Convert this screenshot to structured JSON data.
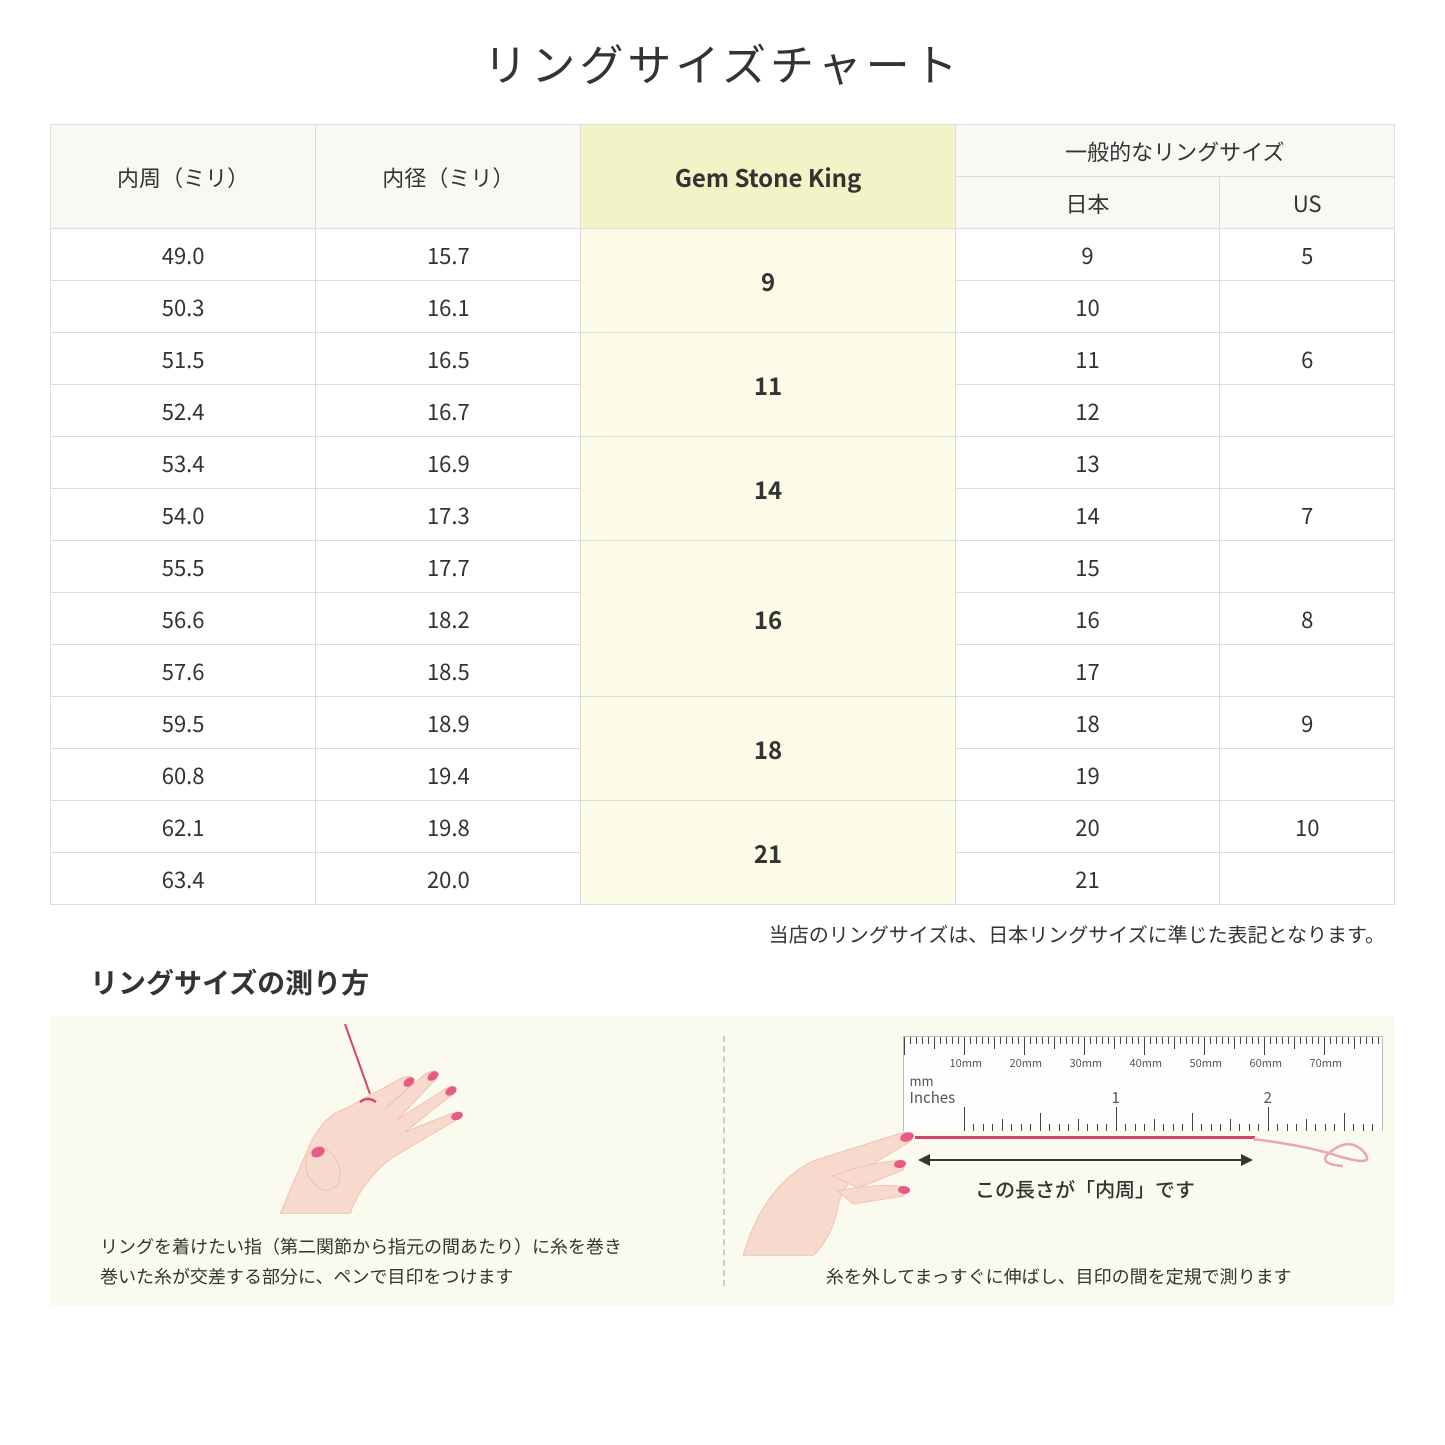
{
  "title": "リングサイズチャート",
  "headers": {
    "col1": "内周（ミリ）",
    "col2": "内径（ミリ）",
    "col3": "Gem Stone King",
    "group": "一般的なリングサイズ",
    "col4": "日本",
    "col5": "US"
  },
  "rows": [
    {
      "c": "49.0",
      "d": "15.7",
      "g": "9",
      "gspan": 2,
      "jp": "9",
      "us": "5"
    },
    {
      "c": "50.3",
      "d": "16.1",
      "jp": "10",
      "us": ""
    },
    {
      "c": "51.5",
      "d": "16.5",
      "g": "11",
      "gspan": 2,
      "jp": "11",
      "us": "6"
    },
    {
      "c": "52.4",
      "d": "16.7",
      "jp": "12",
      "us": ""
    },
    {
      "c": "53.4",
      "d": "16.9",
      "g": "14",
      "gspan": 2,
      "jp": "13",
      "us": ""
    },
    {
      "c": "54.0",
      "d": "17.3",
      "jp": "14",
      "us": "7"
    },
    {
      "c": "55.5",
      "d": "17.7",
      "g": "16",
      "gspan": 3,
      "jp": "15",
      "us": ""
    },
    {
      "c": "56.6",
      "d": "18.2",
      "jp": "16",
      "us": "8"
    },
    {
      "c": "57.6",
      "d": "18.5",
      "jp": "17",
      "us": ""
    },
    {
      "c": "59.5",
      "d": "18.9",
      "g": "18",
      "gspan": 2,
      "jp": "18",
      "us": "9"
    },
    {
      "c": "60.8",
      "d": "19.4",
      "jp": "19",
      "us": ""
    },
    {
      "c": "62.1",
      "d": "19.8",
      "g": "21",
      "gspan": 2,
      "jp": "20",
      "us": "10"
    },
    {
      "c": "63.4",
      "d": "20.0",
      "jp": "21",
      "us": ""
    }
  ],
  "note": "当店のリングサイズは、日本リングサイズに準じた表記となります。",
  "measure": {
    "title": "リングサイズの測り方",
    "left_caption": "リングを着けたい指（第二関節から指元の間あたり）に糸を巻き\n巻いた糸が交差する部分に、ペンで目印をつけます",
    "right_caption": "糸を外してまっすぐに伸ばし、目印の間を定規で測ります",
    "arrow_label": "この長さが「内周」です",
    "ruler_mm": "mm",
    "ruler_in": "Inches",
    "ruler_mm_marks": [
      "10mm",
      "20mm",
      "30mm",
      "40mm",
      "50mm",
      "60mm",
      "70mm"
    ],
    "ruler_in_marks": [
      "1",
      "2"
    ]
  },
  "colors": {
    "skin": "#f7d9cd",
    "skin_dark": "#f2c2b0",
    "nail": "#e85a8a",
    "thread": "#d4456a",
    "bg_info": "#fbfaee",
    "highlight": "#f3f3c8"
  }
}
